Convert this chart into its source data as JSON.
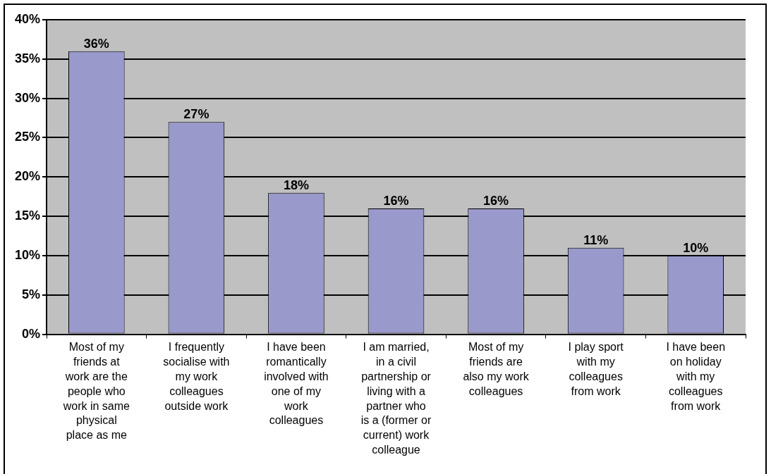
{
  "chart_data": {
    "type": "bar",
    "categories": [
      "Most of my friends at work are the people who work in same physical place as me",
      "I frequently socialise with my work colleagues outside work",
      "I have been romantically involved with one of my work colleagues",
      "I am married, in a civil partnership or living with a partner who is a (former or current) work colleague",
      "Most of my friends are also my work colleagues",
      "I play sport with my colleagues from work",
      "I have been on holiday with my colleagues from work"
    ],
    "values": [
      36,
      27,
      18,
      16,
      16,
      11,
      10
    ],
    "value_labels": [
      "36%",
      "27%",
      "18%",
      "16%",
      "16%",
      "11%",
      "10%"
    ],
    "color": "#9999cc",
    "ylim": [
      0,
      40
    ],
    "yticks": [
      {
        "value": 0,
        "label": "0%"
      },
      {
        "value": 5,
        "label": "5%"
      },
      {
        "value": 10,
        "label": "10%"
      },
      {
        "value": 15,
        "label": "15%"
      },
      {
        "value": 20,
        "label": "20%"
      },
      {
        "value": 25,
        "label": "25%"
      },
      {
        "value": 30,
        "label": "30%"
      },
      {
        "value": 35,
        "label": "35%"
      },
      {
        "value": 40,
        "label": "40%"
      }
    ],
    "grid": "y",
    "legend": false
  }
}
